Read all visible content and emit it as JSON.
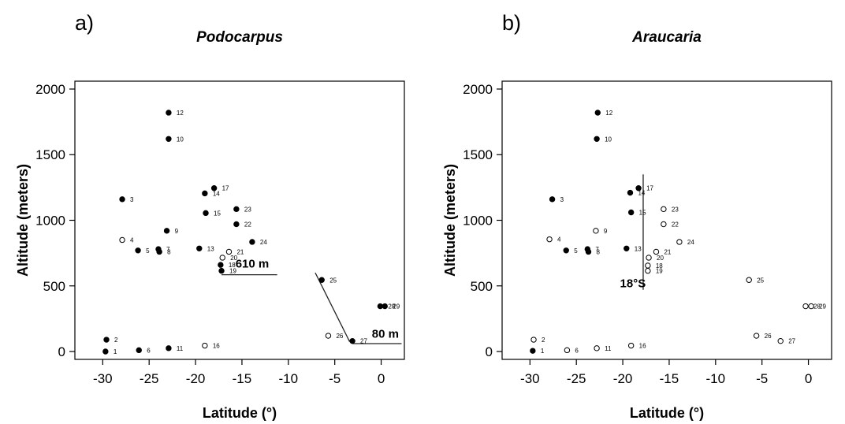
{
  "chart_data": [
    {
      "type": "scatter",
      "panel_label": "a)",
      "title": "Podocarpus",
      "xlabel": "Latitude (°)",
      "ylabel": "Altitude (meters)",
      "xlim": [
        -33,
        2.5
      ],
      "ylim": [
        -60,
        2060
      ],
      "xticks": [
        -30,
        -25,
        -20,
        -15,
        -10,
        -5,
        0
      ],
      "yticks": [
        0,
        500,
        1000,
        1500,
        2000
      ],
      "marker_legend": {
        "filled": "present",
        "open": "absent"
      },
      "points": [
        {
          "id": "1",
          "x": -29.7,
          "y": 0,
          "filled": true
        },
        {
          "id": "2",
          "x": -29.6,
          "y": 90,
          "filled": true
        },
        {
          "id": "3",
          "x": -27.9,
          "y": 1160,
          "filled": true
        },
        {
          "id": "4",
          "x": -27.9,
          "y": 850,
          "filled": false
        },
        {
          "id": "5",
          "x": -26.2,
          "y": 770,
          "filled": true
        },
        {
          "id": "6",
          "x": -26.1,
          "y": 10,
          "filled": true
        },
        {
          "id": "7",
          "x": -24.0,
          "y": 780,
          "filled": true
        },
        {
          "id": "8",
          "x": -23.9,
          "y": 760,
          "filled": true
        },
        {
          "id": "9",
          "x": -23.1,
          "y": 920,
          "filled": true
        },
        {
          "id": "10",
          "x": -22.9,
          "y": 1620,
          "filled": true
        },
        {
          "id": "11",
          "x": -22.9,
          "y": 25,
          "filled": true
        },
        {
          "id": "12",
          "x": -22.9,
          "y": 1820,
          "filled": true
        },
        {
          "id": "13",
          "x": -19.6,
          "y": 785,
          "filled": true
        },
        {
          "id": "14",
          "x": -19.0,
          "y": 1205,
          "filled": true
        },
        {
          "id": "15",
          "x": -18.9,
          "y": 1055,
          "filled": true
        },
        {
          "id": "16",
          "x": -19.0,
          "y": 45,
          "filled": false
        },
        {
          "id": "17",
          "x": -18.0,
          "y": 1245,
          "filled": true
        },
        {
          "id": "18",
          "x": -17.3,
          "y": 660,
          "filled": true
        },
        {
          "id": "19",
          "x": -17.2,
          "y": 615,
          "filled": true
        },
        {
          "id": "20",
          "x": -17.1,
          "y": 715,
          "filled": false
        },
        {
          "id": "21",
          "x": -16.4,
          "y": 760,
          "filled": false
        },
        {
          "id": "22",
          "x": -15.6,
          "y": 970,
          "filled": true
        },
        {
          "id": "23",
          "x": -15.6,
          "y": 1085,
          "filled": true
        },
        {
          "id": "24",
          "x": -13.9,
          "y": 835,
          "filled": true
        },
        {
          "id": "25",
          "x": -6.4,
          "y": 545,
          "filled": true
        },
        {
          "id": "26",
          "x": -5.7,
          "y": 120,
          "filled": false
        },
        {
          "id": "27",
          "x": -3.1,
          "y": 80,
          "filled": true
        },
        {
          "id": "28",
          "x": -0.1,
          "y": 345,
          "filled": true
        },
        {
          "id": "29",
          "x": 0.4,
          "y": 345,
          "filled": true
        }
      ],
      "annotations": [
        {
          "text": "610 m",
          "x": -15.7,
          "y": 640
        },
        {
          "text": "80 m",
          "x": -1.0,
          "y": 105
        }
      ],
      "threshold_lines": [
        {
          "from": [
            -17.2,
            585
          ],
          "to": [
            -11.2,
            585
          ]
        },
        {
          "from": [
            -3.1,
            60
          ],
          "to": [
            2.2,
            60
          ]
        },
        {
          "from": [
            -7.1,
            600
          ],
          "to": [
            -3.4,
            75
          ]
        }
      ]
    },
    {
      "type": "scatter",
      "panel_label": "b)",
      "title": "Araucaria",
      "xlabel": "Latitude (°)",
      "ylabel": "Altitude (meters)",
      "xlim": [
        -33,
        2.5
      ],
      "ylim": [
        -60,
        2060
      ],
      "xticks": [
        -30,
        -25,
        -20,
        -15,
        -10,
        -5,
        0
      ],
      "yticks": [
        0,
        500,
        1000,
        1500,
        2000
      ],
      "marker_legend": {
        "filled": "present",
        "open": "absent"
      },
      "points": [
        {
          "id": "1",
          "x": -29.7,
          "y": 5,
          "filled": true
        },
        {
          "id": "2",
          "x": -29.6,
          "y": 90,
          "filled": false
        },
        {
          "id": "3",
          "x": -27.6,
          "y": 1160,
          "filled": true
        },
        {
          "id": "4",
          "x": -27.9,
          "y": 855,
          "filled": false
        },
        {
          "id": "5",
          "x": -26.1,
          "y": 770,
          "filled": true
        },
        {
          "id": "6",
          "x": -26.0,
          "y": 10,
          "filled": false
        },
        {
          "id": "7",
          "x": -23.8,
          "y": 780,
          "filled": true
        },
        {
          "id": "8",
          "x": -23.7,
          "y": 760,
          "filled": true
        },
        {
          "id": "9",
          "x": -22.9,
          "y": 920,
          "filled": false
        },
        {
          "id": "10",
          "x": -22.8,
          "y": 1620,
          "filled": true
        },
        {
          "id": "11",
          "x": -22.8,
          "y": 25,
          "filled": false
        },
        {
          "id": "12",
          "x": -22.7,
          "y": 1820,
          "filled": true
        },
        {
          "id": "13",
          "x": -19.6,
          "y": 785,
          "filled": true
        },
        {
          "id": "14",
          "x": -19.2,
          "y": 1210,
          "filled": true
        },
        {
          "id": "15",
          "x": -19.1,
          "y": 1060,
          "filled": true
        },
        {
          "id": "16",
          "x": -19.1,
          "y": 45,
          "filled": false
        },
        {
          "id": "17",
          "x": -18.3,
          "y": 1245,
          "filled": true
        },
        {
          "id": "18",
          "x": -17.3,
          "y": 655,
          "filled": false
        },
        {
          "id": "19",
          "x": -17.3,
          "y": 615,
          "filled": false
        },
        {
          "id": "20",
          "x": -17.2,
          "y": 715,
          "filled": false
        },
        {
          "id": "21",
          "x": -16.4,
          "y": 760,
          "filled": false
        },
        {
          "id": "22",
          "x": -15.6,
          "y": 970,
          "filled": false
        },
        {
          "id": "23",
          "x": -15.6,
          "y": 1085,
          "filled": false
        },
        {
          "id": "24",
          "x": -13.9,
          "y": 835,
          "filled": false
        },
        {
          "id": "25",
          "x": -6.4,
          "y": 545,
          "filled": false
        },
        {
          "id": "26",
          "x": -5.6,
          "y": 120,
          "filled": false
        },
        {
          "id": "27",
          "x": -3.0,
          "y": 80,
          "filled": false
        },
        {
          "id": "28",
          "x": -0.3,
          "y": 345,
          "filled": false
        },
        {
          "id": "29",
          "x": 0.3,
          "y": 345,
          "filled": false
        }
      ],
      "annotations": [
        {
          "text": "18°S",
          "x": -20.3,
          "y": 490
        }
      ],
      "threshold_lines": [
        {
          "from": [
            -17.8,
            470
          ],
          "to": [
            -17.8,
            1350
          ]
        }
      ]
    }
  ]
}
